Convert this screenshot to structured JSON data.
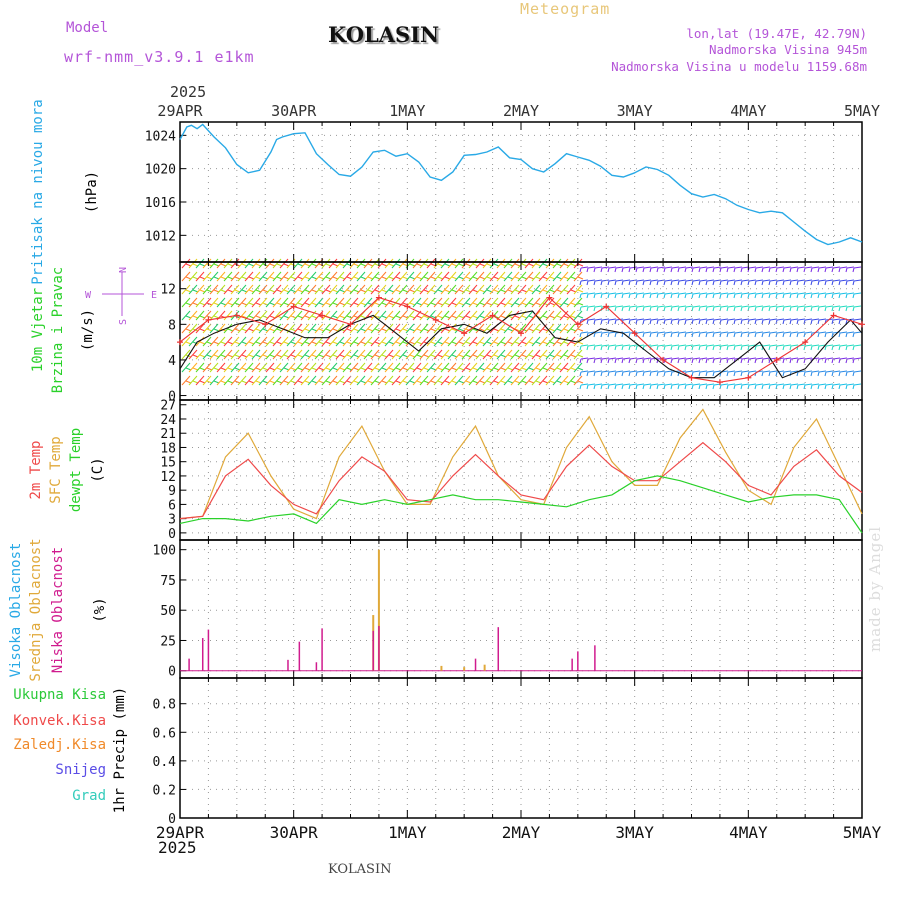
{
  "header": {
    "model_label": "Model",
    "model_name": "wrf-nmm_v3.9.1 e1km",
    "station": "KOLASIN",
    "product": "Meteogram",
    "location_lines": [
      "lon,lat (19.47E, 42.79N)",
      "Nadmorska Visina 945m",
      "Nadmorska Visina u modelu 1159.68m"
    ],
    "year": "2025"
  },
  "footer": {
    "station": "KOLASIN",
    "credit": "made by Angel"
  },
  "colors": {
    "pressure": "#29a9e6",
    "wind_black": "#111111",
    "wind_red": "#ee3333",
    "temp2m": "#ef4a4a",
    "sfc_temp": "#e0a93a",
    "dewpt": "#2ad12a",
    "high_cloud": "#29a9e6",
    "mid_cloud": "#e0a93a",
    "low_cloud": "#d01b8e",
    "precip_total": "#2cc93a",
    "precip_conv": "#ef4a4a",
    "precip_frz": "#f08a2a",
    "snow": "#5a4de6",
    "hail": "#33ccbb"
  },
  "chart_data": [
    {
      "id": "pressure",
      "type": "line",
      "ylabel_lines": [
        "Pritisak na nivou mora",
        "(hPa)"
      ],
      "yticks": [
        1012,
        1016,
        1020,
        1024
      ],
      "ylim": [
        1008.8,
        1025.6
      ],
      "x_tick_labels": [
        "29APR",
        "30APR",
        "1MAY",
        "2MAY",
        "3MAY",
        "4MAY",
        "5MAY"
      ],
      "x_unit": "days from 29APR 00UTC",
      "series": [
        {
          "name": "Pritisak na nivou mora",
          "x": [
            0,
            0.06,
            0.1,
            0.15,
            0.2,
            0.3,
            0.4,
            0.5,
            0.6,
            0.7,
            0.8,
            0.85,
            0.9,
            1.0,
            1.1,
            1.2,
            1.3,
            1.4,
            1.5,
            1.6,
            1.7,
            1.8,
            1.9,
            2.0,
            2.1,
            2.2,
            2.3,
            2.4,
            2.5,
            2.6,
            2.7,
            2.8,
            2.9,
            3.0,
            3.1,
            3.2,
            3.3,
            3.4,
            3.5,
            3.6,
            3.7,
            3.8,
            3.9,
            4.0,
            4.1,
            4.2,
            4.3,
            4.4,
            4.5,
            4.6,
            4.7,
            4.8,
            4.9,
            5.0,
            5.1,
            5.2,
            5.3,
            5.4,
            5.5,
            5.6,
            5.7,
            5.8,
            5.9,
            6.0
          ],
          "y": [
            1023.5,
            1025.0,
            1025.2,
            1024.8,
            1025.3,
            1023.8,
            1022.5,
            1020.5,
            1019.5,
            1019.8,
            1022.0,
            1023.5,
            1023.8,
            1024.2,
            1024.3,
            1021.8,
            1020.5,
            1019.3,
            1019.1,
            1020.2,
            1022.0,
            1022.2,
            1021.5,
            1021.8,
            1020.8,
            1019.0,
            1018.6,
            1019.6,
            1021.6,
            1021.7,
            1022.0,
            1022.6,
            1021.3,
            1021.1,
            1020.0,
            1019.6,
            1020.6,
            1021.8,
            1021.4,
            1021.0,
            1020.3,
            1019.2,
            1019.0,
            1019.5,
            1020.2,
            1019.9,
            1019.2,
            1018.0,
            1017.0,
            1016.6,
            1016.9,
            1016.4,
            1015.6,
            1015.1,
            1014.7,
            1014.9,
            1014.7,
            1013.6,
            1012.5,
            1011.5,
            1010.9,
            1011.2,
            1011.7,
            1011.2
          ]
        }
      ]
    },
    {
      "id": "wind",
      "type": "line",
      "ylabel_lines": [
        "10m Vjetar",
        "Brzina i Pravac",
        "(m/s)"
      ],
      "compass": [
        "N",
        "W",
        "E",
        "S"
      ],
      "yticks": [
        0,
        4,
        8,
        12
      ],
      "ylim": [
        -0.5,
        15.0
      ],
      "series": [
        {
          "x": [
            0,
            0.15,
            0.3,
            0.5,
            0.7,
            0.9,
            1.1,
            1.3,
            1.5,
            1.7,
            1.9,
            2.1,
            2.3,
            2.5,
            2.7,
            2.9,
            3.1,
            3.3,
            3.5,
            3.7,
            3.9,
            4.1,
            4.3,
            4.5,
            4.7,
            4.9,
            5.1,
            5.3,
            5.5,
            5.7,
            5.9,
            6.0
          ],
          "y": [
            3,
            6,
            7,
            8,
            8.5,
            7.5,
            6.5,
            6.5,
            8,
            9,
            7,
            5,
            7.5,
            8,
            7,
            9,
            9.5,
            6.5,
            6,
            7.5,
            7,
            5,
            3,
            2,
            2,
            4,
            6,
            2,
            3,
            6,
            8.5,
            7
          ]
        },
        {
          "x": [
            0,
            0.25,
            0.5,
            0.75,
            1.0,
            1.25,
            1.5,
            1.75,
            2.0,
            2.25,
            2.5,
            2.75,
            3.0,
            3.25,
            3.5,
            3.75,
            4.0,
            4.25,
            4.5,
            4.75,
            5.0,
            5.25,
            5.5,
            5.75,
            6.0
          ],
          "y": [
            6,
            8.5,
            9,
            8,
            10,
            9,
            8,
            11,
            10,
            8.5,
            7,
            9,
            7,
            11,
            8,
            10,
            7,
            4,
            2,
            1.5,
            2,
            4,
            6,
            9,
            8
          ]
        }
      ]
    },
    {
      "id": "temperature",
      "type": "line",
      "ylabel_lines": [
        "2m Temp",
        "SFC Temp",
        "dewpt Temp",
        "(C)"
      ],
      "yticks": [
        0,
        3,
        6,
        9,
        12,
        15,
        18,
        21,
        24,
        27
      ],
      "ylim": [
        -1.5,
        28
      ],
      "series": [
        {
          "name": "2m Temp",
          "x": [
            0,
            0.2,
            0.4,
            0.6,
            0.8,
            1.0,
            1.2,
            1.4,
            1.6,
            1.8,
            2.0,
            2.2,
            2.4,
            2.6,
            2.8,
            3.0,
            3.2,
            3.4,
            3.6,
            3.8,
            4.0,
            4.2,
            4.4,
            4.6,
            4.8,
            5.0,
            5.2,
            5.4,
            5.6,
            5.8,
            6.0
          ],
          "y": [
            3,
            3.5,
            12,
            15.5,
            10,
            6,
            4,
            11,
            16,
            13,
            7,
            6.5,
            12,
            16.5,
            12,
            8,
            7,
            14,
            18.5,
            14,
            11,
            11,
            15,
            19,
            15,
            10,
            8,
            14,
            17.5,
            12,
            8.5
          ]
        },
        {
          "name": "SFC Temp",
          "x": [
            0,
            0.2,
            0.4,
            0.6,
            0.8,
            1.0,
            1.2,
            1.4,
            1.6,
            1.8,
            2.0,
            2.2,
            2.4,
            2.6,
            2.8,
            3.0,
            3.2,
            3.4,
            3.6,
            3.8,
            4.0,
            4.2,
            4.4,
            4.6,
            4.8,
            5.0,
            5.2,
            5.4,
            5.6,
            5.8,
            6.0
          ],
          "y": [
            3,
            3.5,
            16,
            21,
            12,
            5,
            3,
            16,
            22.5,
            13,
            6,
            6,
            16,
            22.5,
            12,
            7,
            6,
            18,
            24.5,
            15,
            10,
            10,
            20,
            26,
            17,
            9,
            6,
            18,
            24,
            14,
            4
          ]
        },
        {
          "name": "dewpt Temp",
          "x": [
            0,
            0.2,
            0.4,
            0.6,
            0.8,
            1.0,
            1.2,
            1.4,
            1.6,
            1.8,
            2.0,
            2.2,
            2.4,
            2.6,
            2.8,
            3.0,
            3.2,
            3.4,
            3.6,
            3.8,
            4.0,
            4.2,
            4.4,
            4.6,
            4.8,
            5.0,
            5.2,
            5.4,
            5.6,
            5.8,
            6.0
          ],
          "y": [
            2,
            3,
            3,
            2.5,
            3.5,
            4,
            2,
            7,
            6,
            7,
            6,
            7,
            8,
            7,
            7,
            6.5,
            6,
            5.5,
            7,
            8,
            11,
            12,
            11,
            9.5,
            8,
            6.5,
            7.5,
            8,
            8,
            7,
            0
          ]
        }
      ]
    },
    {
      "id": "clouds",
      "type": "bar",
      "ylabel_lines": [
        "Visoka Oblacnost",
        "Srednja Oblacnost",
        "Niska Oblacnost",
        "(%)"
      ],
      "yticks": [
        0,
        25,
        50,
        75,
        100
      ],
      "ylim": [
        -6,
        108
      ],
      "series": [
        {
          "name": "Visoka Oblacnost",
          "x": [],
          "y": []
        },
        {
          "name": "Srednja Oblacnost",
          "x": [
            1.7,
            1.75,
            2.3,
            2.5,
            2.68
          ],
          "y": [
            46,
            100,
            4,
            3,
            5
          ]
        },
        {
          "name": "Niska Oblacnost",
          "x": [
            0.08,
            0.2,
            0.25,
            0.95,
            1.05,
            1.2,
            1.25,
            1.7,
            1.75,
            2.6,
            2.8,
            3.45,
            3.5,
            3.65
          ],
          "y": [
            10,
            27,
            34,
            9,
            24,
            7,
            35,
            33,
            37,
            10,
            36,
            10,
            16,
            21
          ]
        }
      ]
    },
    {
      "id": "precip",
      "type": "bar",
      "ylabel_lines": [
        "1hr Precip (mm)"
      ],
      "legend": [
        "Ukupna Kisa",
        "Konvek.Kisa",
        "Zaledj.Kisa",
        "Snijeg",
        "Grad"
      ],
      "yticks": [
        0,
        0.2,
        0.4,
        0.6,
        0.8
      ],
      "ylim": [
        0,
        0.98
      ],
      "series": [
        {
          "name": "Ukupna Kisa",
          "x": [],
          "y": []
        },
        {
          "name": "Konvek.Kisa",
          "x": [],
          "y": []
        },
        {
          "name": "Zaledj.Kisa",
          "x": [],
          "y": []
        },
        {
          "name": "Snijeg",
          "x": [],
          "y": []
        },
        {
          "name": "Grad",
          "x": [],
          "y": []
        }
      ]
    }
  ]
}
